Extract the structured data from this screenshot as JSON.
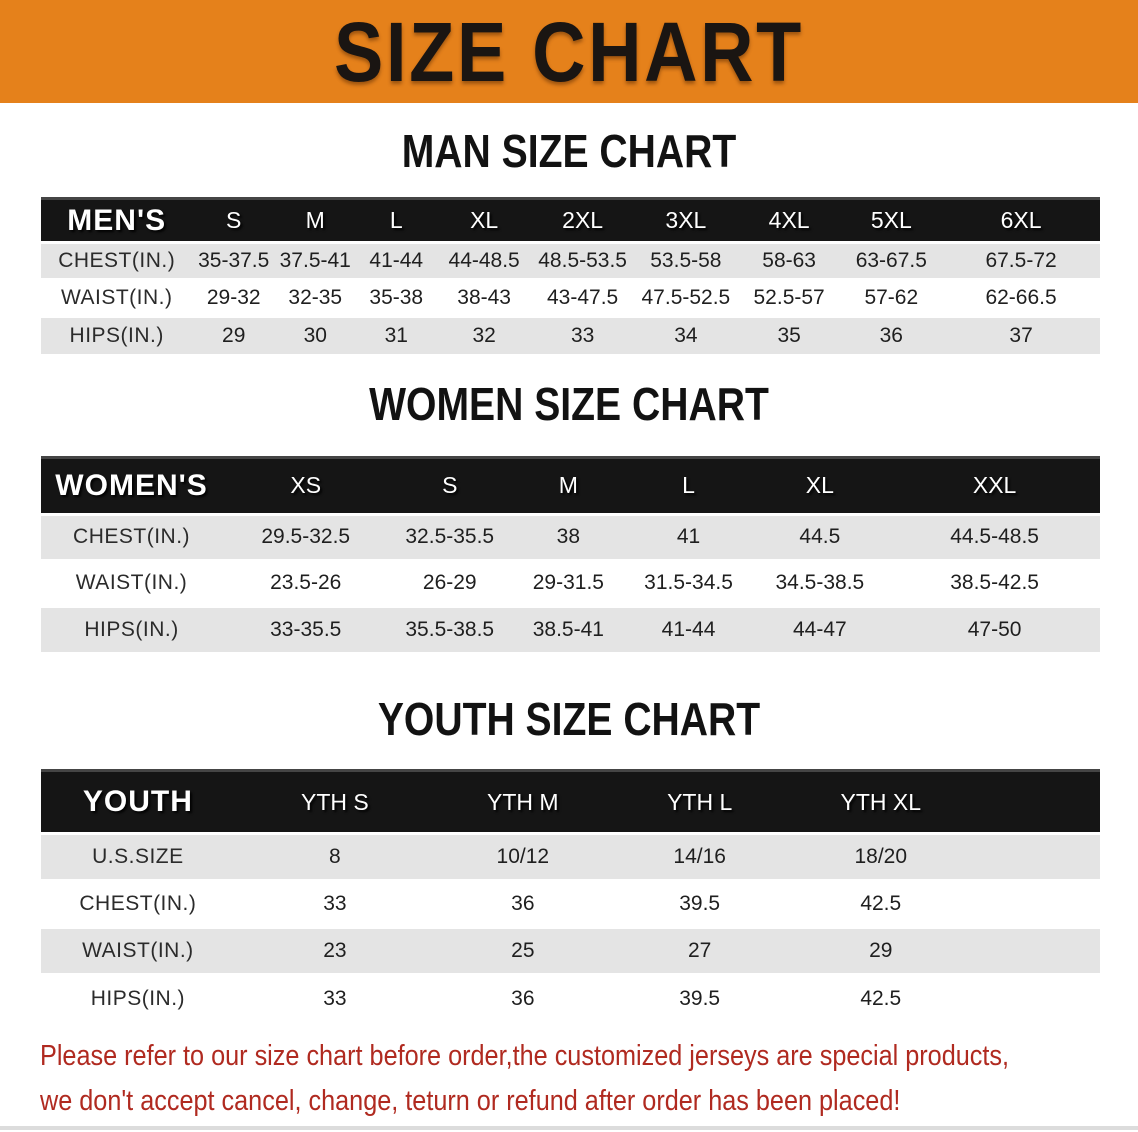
{
  "banner": {
    "title": "SIZE CHART"
  },
  "sections": [
    {
      "id": "men",
      "heading": "MAN SIZE CHART",
      "table": {
        "label": "MEN'S",
        "columns": [
          "S",
          "M",
          "L",
          "XL",
          "2XL",
          "3XL",
          "4XL",
          "5XL",
          "6XL"
        ],
        "rows": [
          {
            "label": "CHEST(IN.)",
            "values": [
              "35-37.5",
              "37.5-41",
              "41-44",
              "44-48.5",
              "48.5-53.5",
              "53.5-58",
              "58-63",
              "63-67.5",
              "67.5-72"
            ]
          },
          {
            "label": "WAIST(IN.)",
            "values": [
              "29-32",
              "32-35",
              "35-38",
              "38-43",
              "43-47.5",
              "47.5-52.5",
              "52.5-57",
              "57-62",
              "62-66.5"
            ]
          },
          {
            "label": "HIPS(IN.)",
            "values": [
              "29",
              "30",
              "31",
              "32",
              "33",
              "34",
              "35",
              "36",
              "37"
            ]
          }
        ]
      }
    },
    {
      "id": "women",
      "heading": "WOMEN SIZE CHART",
      "table": {
        "label": "WOMEN'S",
        "columns": [
          "XS",
          "S",
          "M",
          "L",
          "XL",
          "XXL"
        ],
        "rows": [
          {
            "label": "CHEST(IN.)",
            "values": [
              "29.5-32.5",
              "32.5-35.5",
              "38",
              "41",
              "44.5",
              "44.5-48.5"
            ]
          },
          {
            "label": "WAIST(IN.)",
            "values": [
              "23.5-26",
              "26-29",
              "29-31.5",
              "31.5-34.5",
              "34.5-38.5",
              "38.5-42.5"
            ]
          },
          {
            "label": "HIPS(IN.)",
            "values": [
              "33-35.5",
              "35.5-38.5",
              "38.5-41",
              "41-44",
              "44-47",
              "47-50"
            ]
          }
        ]
      }
    },
    {
      "id": "youth",
      "heading": "YOUTH SIZE CHART",
      "table": {
        "label": "YOUTH",
        "columns": [
          "YTH S",
          "YTH M",
          "YTH L",
          "YTH XL"
        ],
        "rows": [
          {
            "label": "U.S.SIZE",
            "values": [
              "8",
              "10/12",
              "14/16",
              "18/20"
            ]
          },
          {
            "label": "CHEST(IN.)",
            "values": [
              "33",
              "36",
              "39.5",
              "42.5"
            ]
          },
          {
            "label": "WAIST(IN.)",
            "values": [
              "23",
              "25",
              "27",
              "29"
            ]
          },
          {
            "label": "HIPS(IN.)",
            "values": [
              "33",
              "36",
              "39.5",
              "42.5"
            ]
          }
        ]
      }
    }
  ],
  "footer": {
    "line1": "Please refer to our size chart before order,the customized jerseys are special products,",
    "line2": "we don't accept cancel, change, teturn or refund after order has been placed!"
  },
  "colors": {
    "banner_bg": "#E5811B",
    "title_text": "#1A1512",
    "table_header_bg": "#151515",
    "table_header_text": "#FFFFFF",
    "row_stripe": "#E4E4E4",
    "row_white": "#FFFFFF",
    "body_text": "#1F1F1F",
    "disclaimer_text": "#B02A20"
  }
}
